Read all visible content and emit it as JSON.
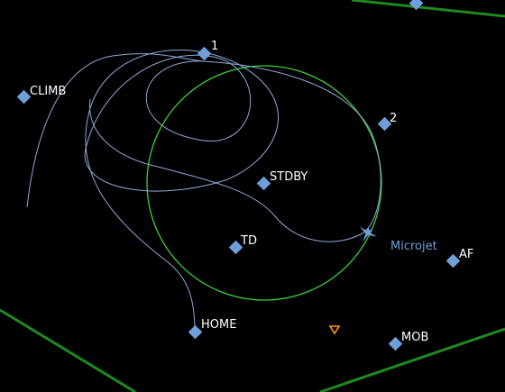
{
  "map": {
    "background": "#000000",
    "boundary_color": "#1d8a1d",
    "circle_color": "#3ccf3c",
    "track_color": "#8fa8d8",
    "waypoint_color": "#6f9fd8",
    "aircraft_color": "#6f9fd8",
    "target_color": "#ff9900"
  },
  "waypoints": {
    "wp1": {
      "label": "1",
      "icon": "diamond-waypoint-icon"
    },
    "wp2": {
      "label": "2",
      "icon": "diamond-waypoint-icon"
    },
    "climb": {
      "label": "CLIMB",
      "icon": "diamond-waypoint-icon"
    },
    "stdby": {
      "label": "STDBY",
      "icon": "diamond-waypoint-icon"
    },
    "td": {
      "label": "TD",
      "icon": "diamond-waypoint-icon"
    },
    "af": {
      "label": "AF",
      "icon": "diamond-waypoint-icon"
    },
    "home": {
      "label": "HOME",
      "icon": "diamond-waypoint-icon"
    },
    "mob": {
      "label": "MOB",
      "icon": "diamond-waypoint-icon"
    }
  },
  "aircraft": {
    "name": "Microjet",
    "icon": "aircraft-icon"
  },
  "target": {
    "icon": "target-triangle-icon"
  }
}
